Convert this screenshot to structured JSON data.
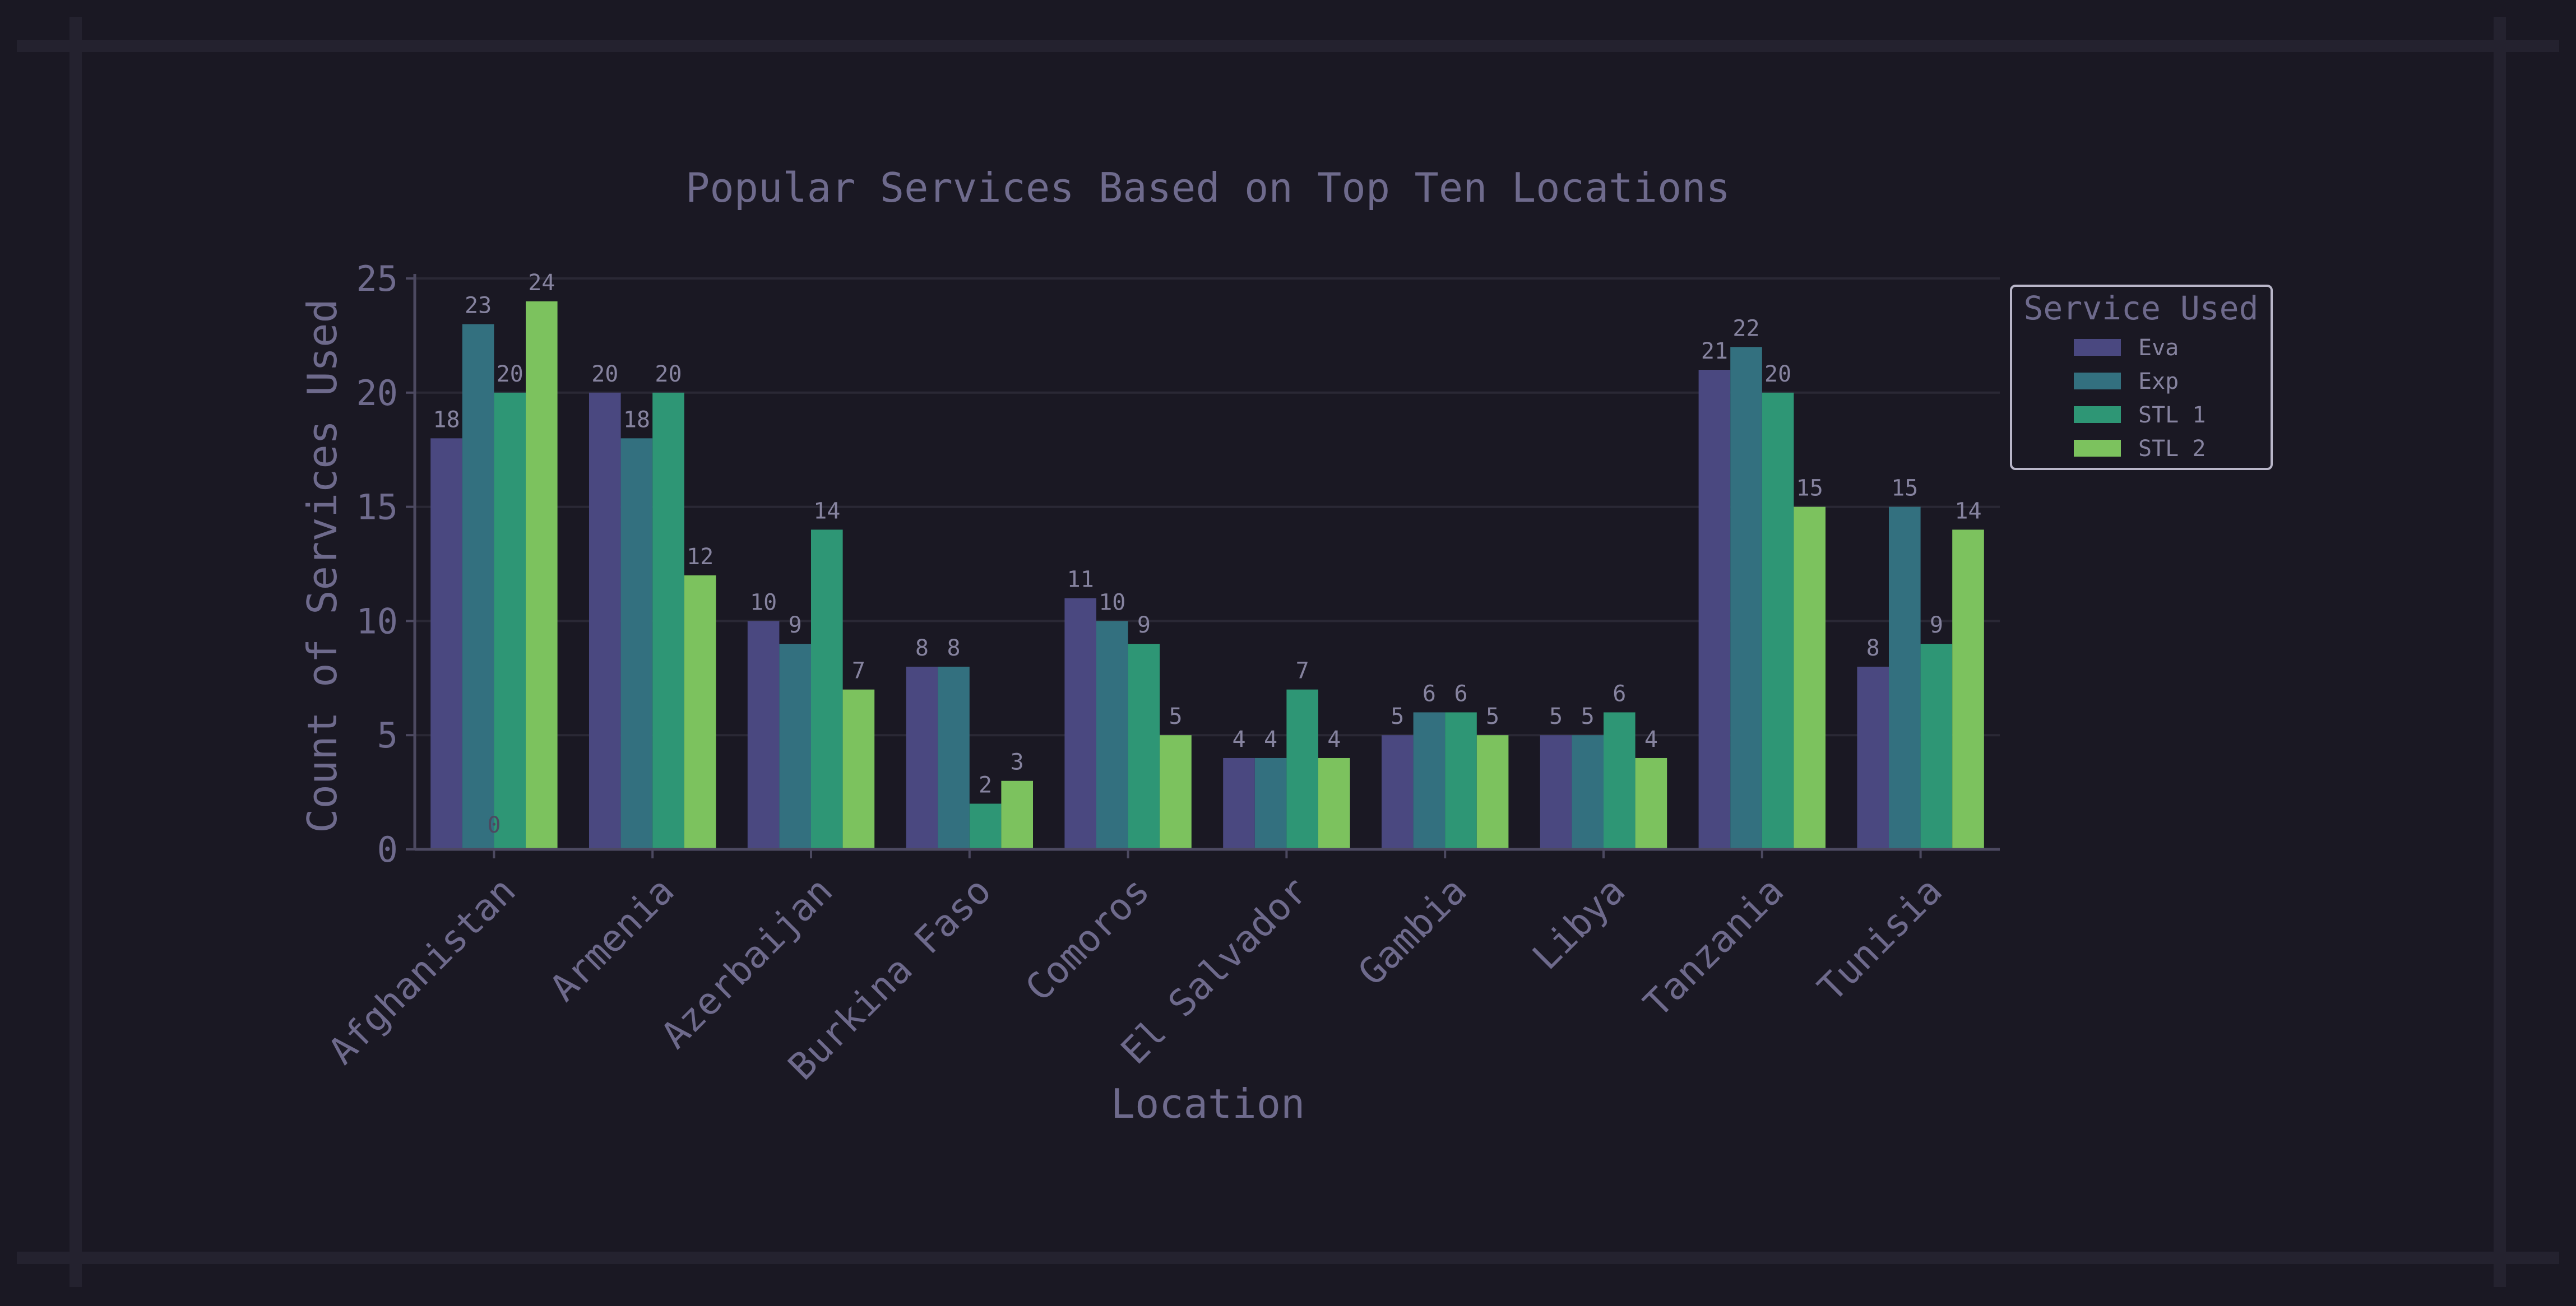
{
  "chart_data": {
    "type": "bar",
    "title": "Popular Services Based on Top Ten Locations",
    "xlabel": "Location",
    "ylabel": "Count of Services Used",
    "ylim": [
      0,
      25
    ],
    "yticks": [
      "0",
      "5",
      "10",
      "15",
      "20",
      "25"
    ],
    "grid": true,
    "legend_title": "Service Used",
    "legend_position": "top-right",
    "categories": [
      "Afghanistan",
      "Armenia",
      "Azerbaijan",
      "Burkina Faso",
      "Comoros",
      "El Salvador",
      "Gambia",
      "Libya",
      "Tanzania",
      "Tunisia"
    ],
    "series": [
      {
        "name": "Eva",
        "color": "#4a4880",
        "values": [
          18,
          20,
          10,
          8,
          11,
          4,
          5,
          5,
          21,
          8
        ]
      },
      {
        "name": "Exp",
        "color": "#33707f",
        "values": [
          23,
          18,
          9,
          8,
          10,
          4,
          6,
          5,
          22,
          15
        ]
      },
      {
        "name": "STL 1",
        "color": "#2e9675",
        "values": [
          20,
          20,
          14,
          2,
          9,
          7,
          6,
          6,
          20,
          9
        ]
      },
      {
        "name": "STL 2",
        "color": "#7cc25e",
        "values": [
          24,
          12,
          7,
          3,
          5,
          4,
          5,
          4,
          15,
          14
        ]
      }
    ],
    "annotations": [
      "0"
    ]
  },
  "colors": {
    "background": "#1a1823",
    "frame": "#24222f",
    "text": "#6e6a8c",
    "data_label": "#86839f",
    "grid": "#2a2835",
    "axis": "#4c4960",
    "legend_border": "#b9b6c9"
  }
}
